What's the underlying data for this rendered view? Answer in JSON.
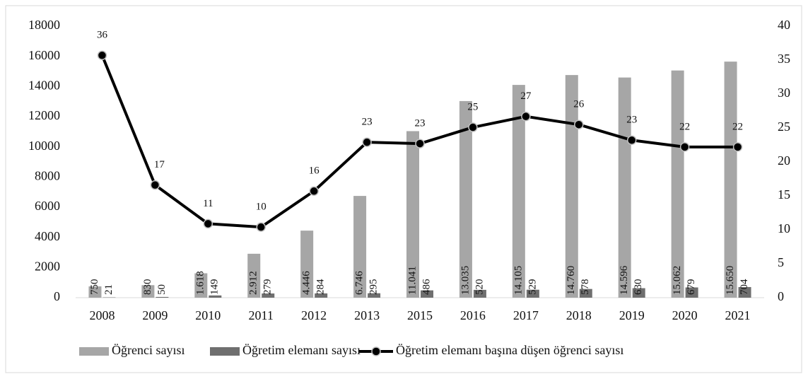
{
  "chart_data": {
    "type": "bar_line",
    "categories": [
      "2008",
      "2009",
      "2010",
      "2011",
      "2012",
      "2013",
      "2015",
      "2016",
      "2017",
      "2018",
      "2019",
      "2020",
      "2021"
    ],
    "series": [
      {
        "name": "Öğrenci sayısı",
        "type": "bar",
        "color": "#a6a6a6",
        "values": [
          750,
          830,
          1618,
          2912,
          4446,
          6746,
          11041,
          13035,
          14105,
          14760,
          14596,
          15062,
          15650
        ],
        "value_labels": [
          "750",
          "830",
          "1.618",
          "2.912",
          "4.446",
          "6.746",
          "11.041",
          "13.035",
          "14.105",
          "14.760",
          "14.596",
          "15.062",
          "15.650"
        ]
      },
      {
        "name": "Öğretim elemanı sayısı",
        "type": "bar",
        "color": "#6f6f6f",
        "values": [
          21,
          50,
          149,
          279,
          284,
          295,
          486,
          520,
          529,
          578,
          630,
          679,
          704
        ]
      },
      {
        "name": "Öğretim elemanı başına düşen öğrenci sayısı",
        "type": "line",
        "axis": "y2",
        "color": "#000000",
        "values": [
          35.7,
          16.6,
          10.9,
          10.4,
          15.7,
          22.9,
          22.7,
          25.1,
          26.7,
          25.5,
          23.2,
          22.2,
          22.2
        ],
        "value_labels": [
          "36",
          "17",
          "11",
          "10",
          "16",
          "23",
          "23",
          "25",
          "27",
          "26",
          "23",
          "22",
          "22"
        ]
      }
    ],
    "ylim": [
      0,
      18000
    ],
    "yticks": [
      0,
      2000,
      4000,
      6000,
      8000,
      10000,
      12000,
      14000,
      16000,
      18000
    ],
    "y2lim": [
      0,
      40
    ],
    "y2ticks": [
      0,
      5,
      10,
      15,
      20,
      25,
      30,
      35,
      40
    ],
    "legend": "bottom"
  }
}
